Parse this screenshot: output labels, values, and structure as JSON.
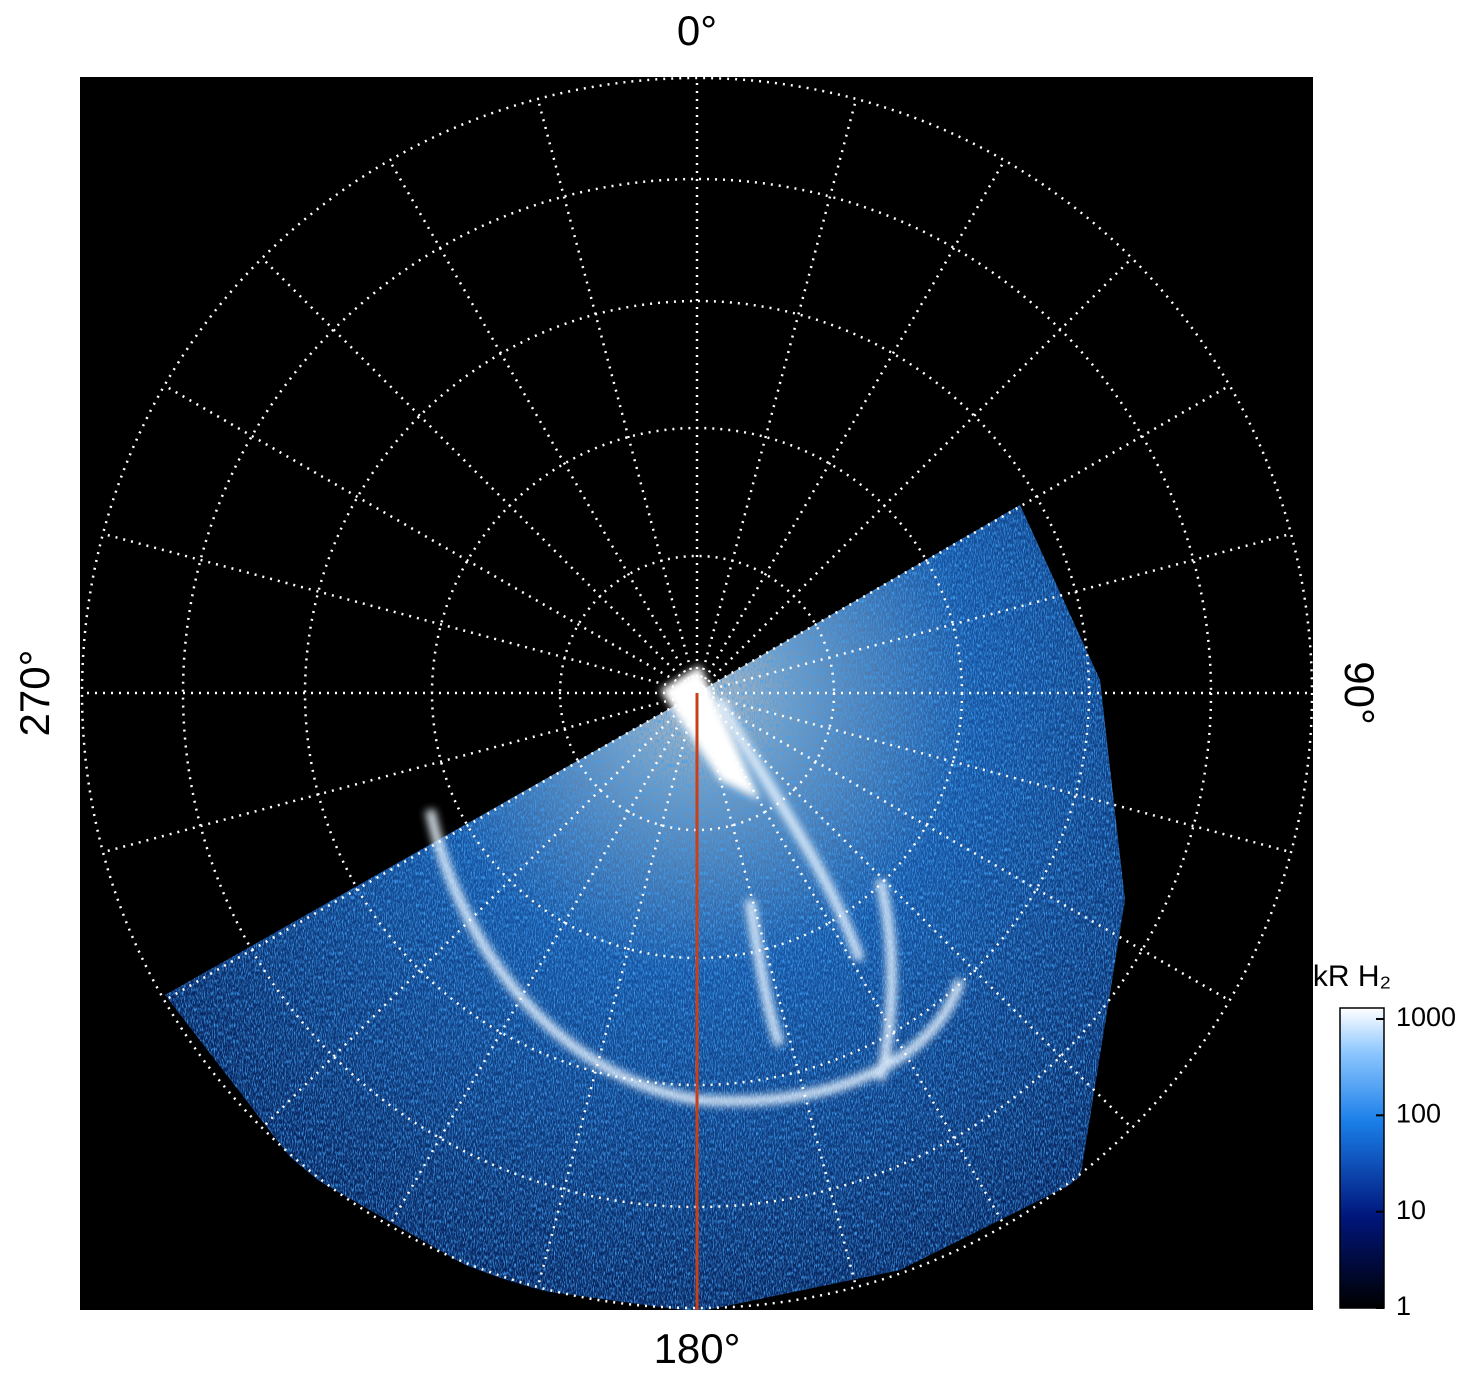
{
  "chart_data": {
    "type": "polar-image",
    "theta_ticks": [
      {
        "value": 0,
        "label": "0°"
      },
      {
        "value": 90,
        "label": "90°"
      },
      {
        "value": 180,
        "label": "180°"
      },
      {
        "value": 270,
        "label": "270°"
      }
    ],
    "colorbar": {
      "title": "kR H₂",
      "log_scale": true,
      "clim": [
        1,
        1300
      ],
      "ticks": [
        1,
        10,
        100,
        1000
      ]
    }
  }
}
